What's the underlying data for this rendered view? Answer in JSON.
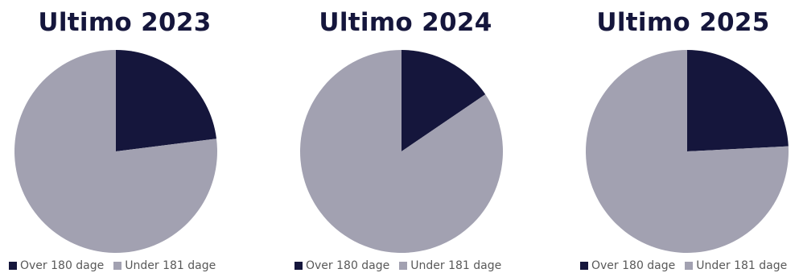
{
  "colors": {
    "over": "#15163c",
    "under": "#a2a1b1",
    "title": "#15163c",
    "legend_text": "#595959"
  },
  "chart_data": [
    {
      "type": "pie",
      "title": "Ultimo 2023",
      "labels": [
        "Over 180 dage",
        "Under 181 dage"
      ],
      "values": [
        23.0,
        77.0
      ],
      "legend": "bottom"
    },
    {
      "type": "pie",
      "title": "Ultimo 2024",
      "labels": [
        "Over 180 dage",
        "Under 181 dage"
      ],
      "values": [
        15.5,
        84.5
      ],
      "legend": "bottom"
    },
    {
      "type": "pie",
      "title": "Ultimo 2025",
      "labels": [
        "Over 180 dage",
        "Under 181 dage"
      ],
      "values": [
        24.2,
        75.8
      ],
      "legend": "bottom"
    }
  ]
}
